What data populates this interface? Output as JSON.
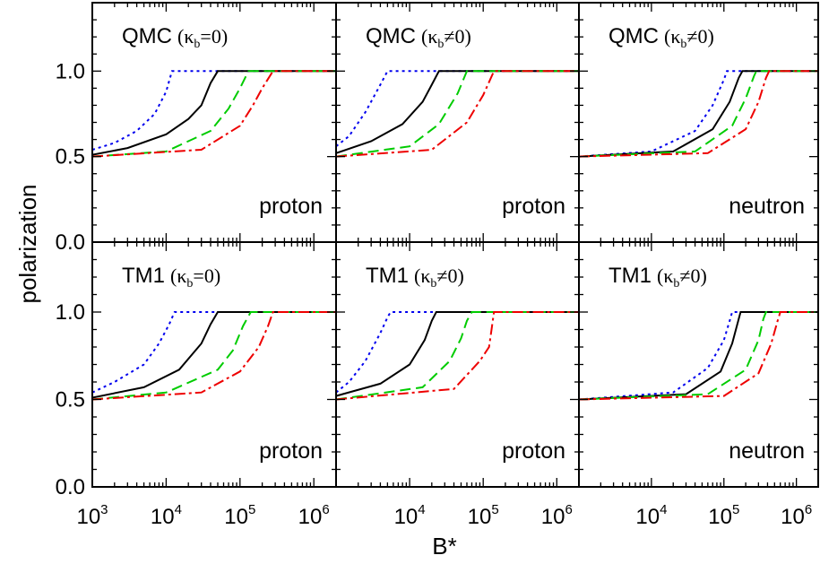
{
  "chart_data": {
    "type": "line",
    "layout": "2x3 grid of panels sharing axes",
    "xlabel": "B*",
    "ylabel": "polarization",
    "xscale": "log",
    "xlim": [
      1000,
      2000000
    ],
    "ylim": [
      0.0,
      1.4
    ],
    "x_ticks": [
      {
        "value": 1000,
        "base": "10",
        "exp": "3"
      },
      {
        "value": 10000,
        "base": "10",
        "exp": "4"
      },
      {
        "value": 100000,
        "base": "10",
        "exp": "5"
      },
      {
        "value": 1000000,
        "base": "10",
        "exp": "6"
      }
    ],
    "y_ticks": [
      "0.0",
      "0.5",
      "1.0"
    ],
    "kappa_symbol": "κ",
    "kappa_subscript": "b",
    "series_styles": [
      {
        "color": "#0000ee",
        "dash": "3,4"
      },
      {
        "color": "#000000",
        "dash": ""
      },
      {
        "color": "#00cc00",
        "dash": "12,6"
      },
      {
        "color": "#ee0000",
        "dash": "12,4,3,4"
      }
    ],
    "panels": [
      {
        "model": "QMC",
        "kappa_rel": "=0",
        "particle": "proton",
        "series": [
          {
            "x": [
              1000,
              2000,
              4000,
              7000,
              10000,
              12000
            ],
            "y": [
              0.54,
              0.58,
              0.65,
              0.75,
              0.88,
              1.0
            ]
          },
          {
            "x": [
              1000,
              3000,
              10000,
              20000,
              30000,
              40000,
              50000
            ],
            "y": [
              0.51,
              0.55,
              0.63,
              0.72,
              0.8,
              0.93,
              1.0
            ]
          },
          {
            "x": [
              1000,
              10000,
              40000,
              70000,
              100000,
              130000
            ],
            "y": [
              0.5,
              0.53,
              0.65,
              0.78,
              0.9,
              1.0
            ]
          },
          {
            "x": [
              1000,
              30000,
              100000,
              150000,
              200000,
              280000
            ],
            "y": [
              0.5,
              0.54,
              0.68,
              0.8,
              0.9,
              1.0
            ]
          }
        ]
      },
      {
        "model": "QMC",
        "kappa_rel": "≠0",
        "particle": "proton",
        "series": [
          {
            "x": [
              1000,
              1500,
              2500,
              4000,
              5000
            ],
            "y": [
              0.56,
              0.62,
              0.76,
              0.92,
              1.0
            ]
          },
          {
            "x": [
              1000,
              3000,
              8000,
              15000,
              20000,
              25000
            ],
            "y": [
              0.52,
              0.59,
              0.69,
              0.82,
              0.92,
              1.0
            ]
          },
          {
            "x": [
              1000,
              10000,
              25000,
              45000,
              60000
            ],
            "y": [
              0.5,
              0.56,
              0.69,
              0.87,
              1.0
            ]
          },
          {
            "x": [
              1000,
              20000,
              60000,
              100000,
              140000
            ],
            "y": [
              0.5,
              0.54,
              0.7,
              0.86,
              1.0
            ]
          }
        ]
      },
      {
        "model": "QMC",
        "kappa_rel": "≠0",
        "particle": "neutron",
        "series": [
          {
            "x": [
              1000,
              10000,
              40000,
              70000,
              100000,
              110000
            ],
            "y": [
              0.5,
              0.53,
              0.65,
              0.8,
              0.95,
              1.0
            ]
          },
          {
            "x": [
              1000,
              20000,
              70000,
              120000,
              160000,
              180000
            ],
            "y": [
              0.5,
              0.53,
              0.66,
              0.82,
              0.96,
              1.0
            ]
          },
          {
            "x": [
              1000,
              40000,
              130000,
              200000,
              260000,
              280000
            ],
            "y": [
              0.5,
              0.53,
              0.68,
              0.84,
              0.97,
              1.0
            ]
          },
          {
            "x": [
              1000,
              60000,
              200000,
              300000,
              380000,
              420000
            ],
            "y": [
              0.5,
              0.52,
              0.66,
              0.82,
              0.96,
              1.0
            ]
          }
        ]
      },
      {
        "model": "TM1",
        "kappa_rel": "=0",
        "particle": "proton",
        "series": [
          {
            "x": [
              1000,
              2000,
              5000,
              8000,
              11000,
              13000
            ],
            "y": [
              0.54,
              0.6,
              0.7,
              0.82,
              0.93,
              1.0
            ]
          },
          {
            "x": [
              1000,
              5000,
              15000,
              30000,
              40000,
              50000
            ],
            "y": [
              0.51,
              0.57,
              0.67,
              0.82,
              0.93,
              1.0
            ]
          },
          {
            "x": [
              1000,
              10000,
              50000,
              80000,
              110000,
              140000
            ],
            "y": [
              0.5,
              0.54,
              0.67,
              0.78,
              0.92,
              1.0
            ]
          },
          {
            "x": [
              1000,
              30000,
              100000,
              180000,
              240000,
              280000
            ],
            "y": [
              0.5,
              0.54,
              0.66,
              0.8,
              0.92,
              1.0
            ]
          }
        ]
      },
      {
        "model": "TM1",
        "kappa_rel": "≠0",
        "particle": "proton",
        "series": [
          {
            "x": [
              1000,
              1500,
              2500,
              4000,
              5000,
              5500
            ],
            "y": [
              0.54,
              0.6,
              0.72,
              0.88,
              0.97,
              1.0
            ]
          },
          {
            "x": [
              1000,
              4000,
              10000,
              16000,
              20000,
              23000
            ],
            "y": [
              0.52,
              0.59,
              0.7,
              0.84,
              0.95,
              1.0
            ]
          },
          {
            "x": [
              1000,
              15000,
              35000,
              50000,
              60000,
              70000
            ],
            "y": [
              0.5,
              0.57,
              0.72,
              0.85,
              0.95,
              1.0
            ]
          },
          {
            "x": [
              1000,
              40000,
              90000,
              120000,
              130000,
              140000
            ],
            "y": [
              0.5,
              0.56,
              0.72,
              0.8,
              0.9,
              1.0
            ]
          }
        ]
      },
      {
        "model": "TM1",
        "kappa_rel": "≠0",
        "particle": "neutron",
        "series": [
          {
            "x": [
              1000,
              20000,
              60000,
              100000,
              120000,
              130000
            ],
            "y": [
              0.5,
              0.54,
              0.68,
              0.84,
              0.95,
              1.0
            ]
          },
          {
            "x": [
              1000,
              30000,
              90000,
              130000,
              160000,
              170000
            ],
            "y": [
              0.5,
              0.53,
              0.66,
              0.82,
              0.96,
              1.0
            ]
          },
          {
            "x": [
              1000,
              60000,
              200000,
              300000,
              350000,
              380000
            ],
            "y": [
              0.5,
              0.53,
              0.67,
              0.84,
              0.96,
              1.0
            ]
          },
          {
            "x": [
              1000,
              100000,
              300000,
              450000,
              550000,
              600000
            ],
            "y": [
              0.5,
              0.52,
              0.65,
              0.82,
              0.95,
              1.0
            ]
          }
        ]
      }
    ]
  }
}
